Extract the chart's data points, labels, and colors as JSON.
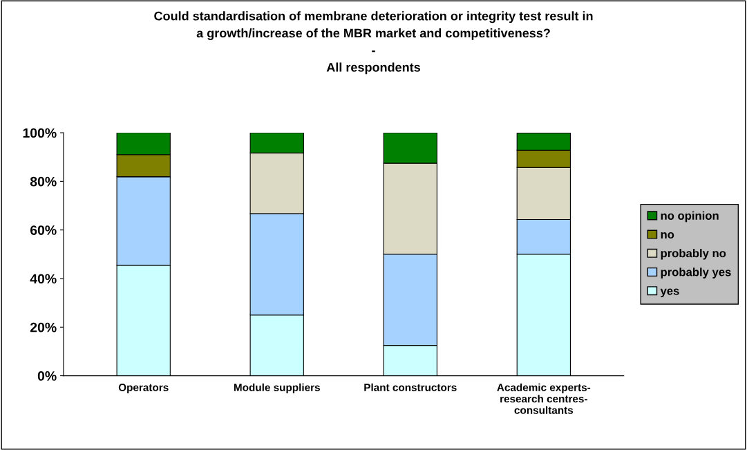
{
  "chart_data": {
    "type": "bar",
    "stacked": true,
    "title": "Could standardisation of membrane deterioration or integrity test result in\na growth/increase of the MBR market and competitiveness?\n-\nAll respondents",
    "categories": [
      "Operators",
      "Module suppliers",
      "Plant constructors",
      "Academic experts-\nresearch centres-\nconsultants"
    ],
    "series": [
      {
        "name": "yes",
        "color": "#ccffff",
        "values": [
          45.5,
          25,
          12.5,
          50
        ]
      },
      {
        "name": "probably yes",
        "color": "#a6d2ff",
        "values": [
          36.4,
          41.7,
          37.5,
          14.3
        ]
      },
      {
        "name": "probably no",
        "color": "#dcdac4",
        "values": [
          0,
          25,
          37.5,
          21.4
        ]
      },
      {
        "name": "no",
        "color": "#808000",
        "values": [
          9.1,
          0,
          0,
          7.1
        ]
      },
      {
        "name": "no opinion",
        "color": "#008000",
        "values": [
          9.1,
          8.3,
          12.5,
          7.1
        ]
      }
    ],
    "ylim": [
      0,
      100
    ],
    "yticks": [
      {
        "value": 0,
        "label": "0%"
      },
      {
        "value": 20,
        "label": "20%"
      },
      {
        "value": 40,
        "label": "40%"
      },
      {
        "value": 60,
        "label": "60%"
      },
      {
        "value": 80,
        "label": "80%"
      },
      {
        "value": 100,
        "label": "100%"
      }
    ],
    "grid": false,
    "legend": "right"
  }
}
